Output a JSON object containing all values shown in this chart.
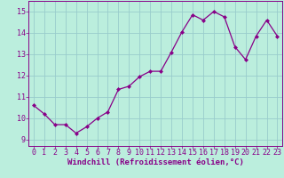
{
  "x": [
    0,
    1,
    2,
    3,
    4,
    5,
    6,
    7,
    8,
    9,
    10,
    11,
    12,
    13,
    14,
    15,
    16,
    17,
    18,
    19,
    20,
    21,
    22,
    23
  ],
  "y": [
    10.6,
    10.2,
    9.7,
    9.7,
    9.3,
    9.6,
    10.0,
    10.3,
    11.35,
    11.5,
    11.95,
    12.2,
    12.2,
    13.1,
    14.05,
    14.85,
    14.6,
    15.0,
    14.75,
    13.35,
    12.75,
    13.85,
    14.6,
    13.85
  ],
  "line_color": "#880088",
  "marker": "D",
  "markersize": 2.0,
  "linewidth": 0.9,
  "bg_color": "#bbeedd",
  "grid_color": "#99cccc",
  "xlabel": "Windchill (Refroidissement éolien,°C)",
  "ylabel_ticks": [
    9,
    10,
    11,
    12,
    13,
    14,
    15
  ],
  "xticks": [
    0,
    1,
    2,
    3,
    4,
    5,
    6,
    7,
    8,
    9,
    10,
    11,
    12,
    13,
    14,
    15,
    16,
    17,
    18,
    19,
    20,
    21,
    22,
    23
  ],
  "ylim": [
    8.7,
    15.5
  ],
  "xlim": [
    -0.5,
    23.5
  ],
  "tick_color": "#880088",
  "label_color": "#880088",
  "xlabel_fontsize": 6.5,
  "tick_fontsize": 6.0
}
